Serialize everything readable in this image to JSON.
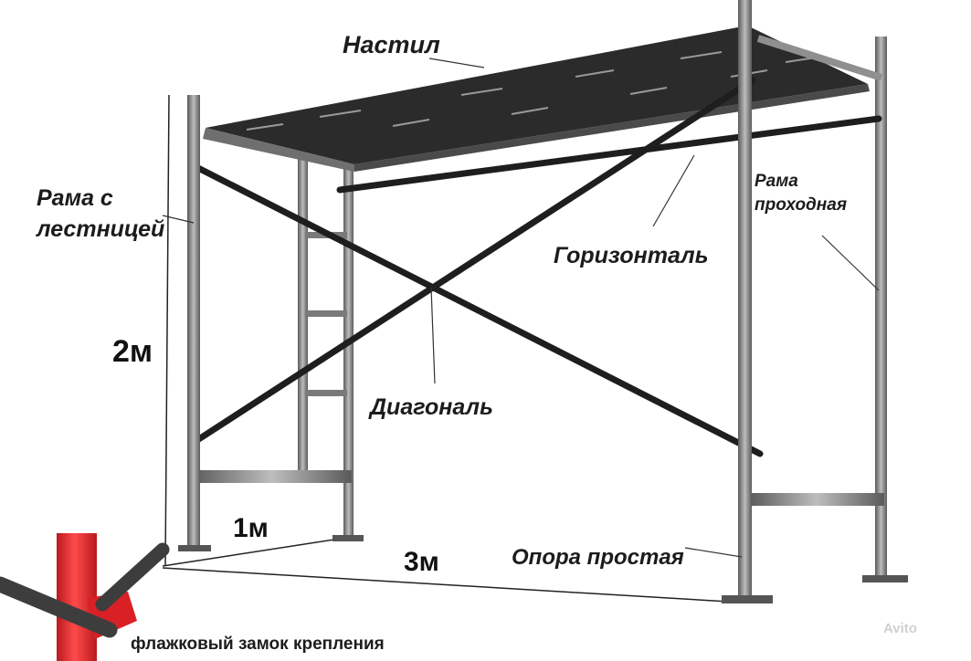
{
  "labels": {
    "nastil": "Настил",
    "frame_ladder_line1": "Рама с",
    "frame_ladder_line2": "лестницей",
    "frame_pass_line1": "Рама",
    "frame_pass_line2": "проходная",
    "horizontal": "Горизонталь",
    "diagonal": "Диагональ",
    "height": "2м",
    "width": "1м",
    "length": "3м",
    "support": "Опора простая",
    "lock": "флажковый замок крепления"
  },
  "watermark": "Avito",
  "colors": {
    "steel": "#8f8f8f",
    "steel_dark": "#5e5e5e",
    "deck": "#2b2b2b",
    "brace": "#1e1e1e",
    "red_pipe": "#e0252b",
    "text": "#1c1c1c"
  }
}
